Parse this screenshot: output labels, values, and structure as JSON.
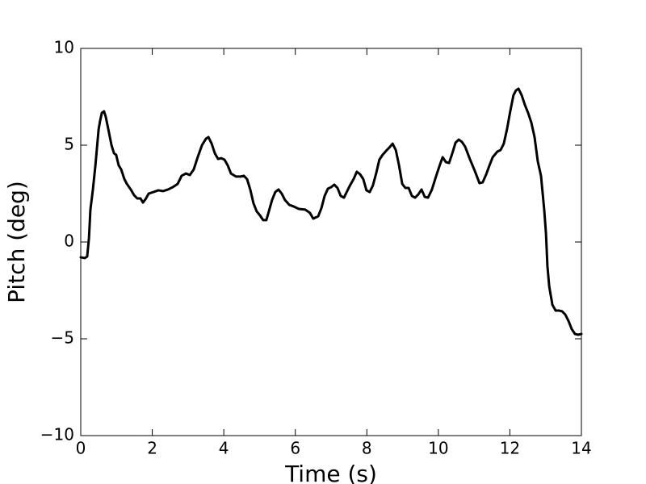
{
  "chart_data": {
    "type": "line",
    "xlabel": "Time (s)",
    "ylabel": "Pitch (deg)",
    "color": "#000000",
    "xlim": [
      0,
      14
    ],
    "xticks": [
      0,
      2,
      4,
      6,
      8,
      10,
      12,
      14
    ],
    "ylim": [
      -10,
      10
    ],
    "yticks": [
      {
        "value": -10,
        "label": "−10"
      },
      {
        "value": -5,
        "label": "−5"
      },
      0,
      5,
      10
    ],
    "grid": false,
    "x": [
      0,
      0.11,
      0.18,
      0.23,
      0.27,
      0.34,
      0.41,
      0.45,
      0.5,
      0.54,
      0.59,
      0.65,
      0.7,
      0.77,
      0.86,
      0.93,
      0.99,
      1.06,
      1.13,
      1.22,
      1.29,
      1.4,
      1.49,
      1.58,
      1.67,
      1.74,
      1.81,
      1.9,
      2.03,
      2.17,
      2.3,
      2.44,
      2.57,
      2.71,
      2.82,
      2.94,
      3.05,
      3.16,
      3.27,
      3.39,
      3.5,
      3.57,
      3.66,
      3.75,
      3.84,
      3.93,
      4.02,
      4.11,
      4.2,
      4.34,
      4.47,
      4.56,
      4.65,
      4.74,
      4.83,
      4.92,
      5.01,
      5.1,
      5.19,
      5.26,
      5.35,
      5.44,
      5.53,
      5.62,
      5.71,
      5.83,
      5.96,
      6.1,
      6.28,
      6.41,
      6.5,
      6.64,
      6.73,
      6.82,
      6.91,
      7.0,
      7.09,
      7.18,
      7.27,
      7.36,
      7.45,
      7.54,
      7.63,
      7.72,
      7.81,
      7.9,
      7.99,
      8.08,
      8.17,
      8.26,
      8.35,
      8.44,
      8.54,
      8.63,
      8.72,
      8.81,
      8.9,
      8.99,
      9.08,
      9.17,
      9.26,
      9.35,
      9.44,
      9.53,
      9.62,
      9.71,
      9.82,
      9.94,
      10.03,
      10.12,
      10.21,
      10.3,
      10.39,
      10.48,
      10.57,
      10.66,
      10.75,
      10.88,
      11.02,
      11.15,
      11.24,
      11.33,
      11.43,
      11.52,
      11.65,
      11.74,
      11.83,
      11.92,
      12.01,
      12.1,
      12.17,
      12.24,
      12.33,
      12.42,
      12.51,
      12.6,
      12.69,
      12.78,
      12.87,
      12.96,
      13.01,
      13.05,
      13.1,
      13.19,
      13.28,
      13.37,
      13.46,
      13.55,
      13.64,
      13.73,
      13.82,
      13.91,
      14.0
    ],
    "values": [
      -0.79,
      -0.83,
      -0.75,
      0.21,
      1.67,
      2.71,
      3.96,
      4.79,
      5.83,
      6.25,
      6.67,
      6.75,
      6.46,
      5.83,
      5.0,
      4.58,
      4.5,
      3.96,
      3.75,
      3.25,
      3.0,
      2.71,
      2.42,
      2.25,
      2.25,
      2.04,
      2.21,
      2.5,
      2.58,
      2.67,
      2.63,
      2.71,
      2.83,
      3.0,
      3.42,
      3.54,
      3.46,
      3.75,
      4.38,
      5.0,
      5.33,
      5.42,
      5.08,
      4.58,
      4.29,
      4.33,
      4.25,
      3.96,
      3.54,
      3.38,
      3.38,
      3.42,
      3.25,
      2.71,
      2.0,
      1.58,
      1.38,
      1.13,
      1.13,
      1.58,
      2.17,
      2.58,
      2.71,
      2.5,
      2.17,
      1.92,
      1.83,
      1.71,
      1.67,
      1.5,
      1.21,
      1.33,
      1.75,
      2.38,
      2.75,
      2.83,
      2.96,
      2.79,
      2.38,
      2.29,
      2.63,
      2.96,
      3.25,
      3.63,
      3.5,
      3.25,
      2.67,
      2.58,
      2.92,
      3.54,
      4.25,
      4.5,
      4.71,
      4.88,
      5.08,
      4.75,
      3.96,
      3.0,
      2.79,
      2.79,
      2.38,
      2.29,
      2.46,
      2.71,
      2.33,
      2.29,
      2.71,
      3.42,
      3.92,
      4.38,
      4.13,
      4.08,
      4.58,
      5.13,
      5.29,
      5.17,
      4.92,
      4.29,
      3.67,
      3.04,
      3.08,
      3.46,
      3.96,
      4.38,
      4.67,
      4.75,
      5.08,
      5.83,
      6.75,
      7.58,
      7.83,
      7.92,
      7.58,
      7.08,
      6.67,
      6.17,
      5.42,
      4.17,
      3.42,
      1.67,
      0.42,
      -1.25,
      -2.29,
      -3.25,
      -3.54,
      -3.54,
      -3.58,
      -3.75,
      -4.08,
      -4.5,
      -4.75,
      -4.79,
      -4.75
    ]
  }
}
